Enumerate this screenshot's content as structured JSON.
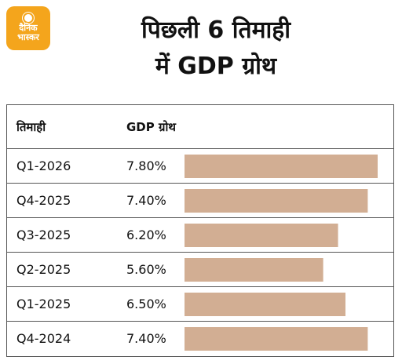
{
  "logo": {
    "line1": "दैनिक",
    "line2": "भास्कर"
  },
  "title_line1": "पिछली 6 तिमाही",
  "title_line2": "में GDP ग्रोथ",
  "chart_data": {
    "type": "bar",
    "orientation": "horizontal",
    "column_headers": [
      "तिमाही",
      "GDP ग्रोथ"
    ],
    "categories": [
      "Q1-2026",
      "Q4-2025",
      "Q3-2025",
      "Q2-2025",
      "Q1-2025",
      "Q4-2024"
    ],
    "values": [
      7.8,
      7.4,
      6.2,
      5.6,
      6.5,
      7.4
    ],
    "value_labels": [
      "7.80%",
      "7.40%",
      "6.20%",
      "5.60%",
      "6.50%",
      "7.40%"
    ],
    "bar_color": "#d2ae93",
    "xlim": [
      0,
      7.8
    ]
  }
}
